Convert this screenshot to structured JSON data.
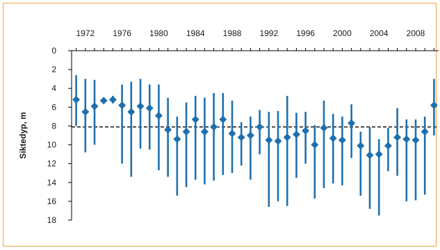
{
  "chart_data": {
    "type": "scatter",
    "title": "",
    "xlabel": "",
    "ylabel": "Siktedyp, m",
    "x_ticks": [
      "1972",
      "1976",
      "1980",
      "1984",
      "1988",
      "1992",
      "1996",
      "2000",
      "2004",
      "2008"
    ],
    "y_ticks": [
      "0",
      "2",
      "4",
      "6",
      "8",
      "10",
      "12",
      "14",
      "16",
      "18"
    ],
    "xlim": [
      1970.5,
      2010.5
    ],
    "ylim": [
      0,
      18
    ],
    "y_inverted": true,
    "x_axis_position": "top",
    "grid": false,
    "legend": "none",
    "reference_line": {
      "value": 8.1,
      "style": "dashed",
      "color": "#000000"
    },
    "marker_color": "#1f6fad",
    "frame_color": "#f3a23a",
    "series": [
      {
        "x": [
          1971,
          1972,
          1973,
          1974,
          1975,
          1976,
          1977,
          1978,
          1979,
          1980,
          1981,
          1982,
          1983,
          1984,
          1985,
          1986,
          1987,
          1988,
          1989,
          1990,
          1991,
          1992,
          1993,
          1994,
          1995,
          1996,
          1997,
          1998,
          1999,
          2000,
          2001,
          2002,
          2003,
          2004,
          2005,
          2006,
          2007,
          2008,
          2009,
          2010
        ],
        "y": [
          5.2,
          6.5,
          5.9,
          5.3,
          5.2,
          5.8,
          6.5,
          5.9,
          6.1,
          6.9,
          8.4,
          9.4,
          8.6,
          7.3,
          8.6,
          8.1,
          7.3,
          8.8,
          9.2,
          9.0,
          8.1,
          9.5,
          9.6,
          9.2,
          8.9,
          8.5,
          10.0,
          8.2,
          9.3,
          9.5,
          7.7,
          10.1,
          11.1,
          11.0,
          10.1,
          9.2,
          9.4,
          9.5,
          8.6,
          5.8
        ],
        "ymin": [
          2.6,
          3.0,
          3.1,
          5.0,
          4.8,
          3.6,
          3.3,
          3.0,
          3.6,
          3.6,
          5.0,
          7.0,
          5.5,
          4.8,
          5.0,
          4.5,
          4.5,
          5.3,
          7.6,
          7.0,
          6.3,
          6.5,
          6.4,
          4.8,
          6.6,
          6.5,
          7.9,
          5.3,
          6.7,
          7.0,
          5.7,
          8.6,
          8.1,
          9.4,
          8.2,
          6.1,
          7.3,
          7.3,
          7.0,
          3.0
        ],
        "ymax": [
          8.0,
          10.8,
          10.0,
          5.6,
          5.6,
          12.0,
          13.4,
          10.4,
          10.5,
          12.7,
          13.4,
          15.4,
          14.5,
          13.7,
          14.2,
          13.8,
          13.2,
          13.0,
          12.2,
          13.7,
          11.0,
          16.6,
          16.0,
          16.5,
          13.5,
          12.0,
          15.7,
          14.6,
          14.1,
          14.3,
          11.4,
          15.4,
          16.8,
          17.5,
          12.8,
          13.3,
          16.0,
          15.9,
          15.3,
          9.0
        ]
      }
    ]
  }
}
